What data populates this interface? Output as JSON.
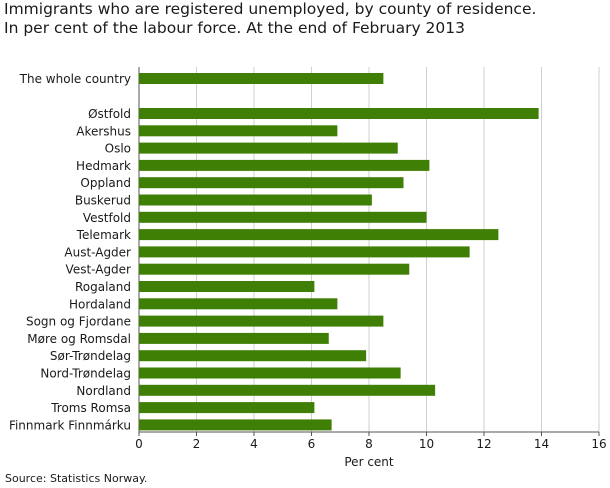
{
  "chart_data": {
    "type": "bar",
    "orientation": "horizontal",
    "title": "Immigrants who are registered unemployed, by county of residence.",
    "subtitle": "In per cent of the labour force. At the end of February 2013",
    "xlabel": "Per cent",
    "ylabel": "",
    "xlim": [
      0,
      16
    ],
    "xticks": [
      "0",
      "2",
      "4",
      "6",
      "8",
      "10",
      "12",
      "14",
      "16"
    ],
    "grid": true,
    "legend": "none",
    "bar_color": "#3f7f05",
    "categories": [
      "The whole country",
      "Østfold",
      "Akershus",
      "Oslo",
      "Hedmark",
      "Oppland",
      "Buskerud",
      "Vestfold",
      "Telemark",
      "Aust-Agder",
      "Vest-Agder",
      "Rogaland",
      "Hordaland",
      "Sogn og Fjordane",
      "Møre og Romsdal",
      "Sør-Trøndelag",
      "Nord-Trøndelag",
      "Nordland",
      "Troms Romsa",
      "Finnmark Finnmárku"
    ],
    "values": [
      8.5,
      13.9,
      6.9,
      9.0,
      10.1,
      9.2,
      8.1,
      10.0,
      12.5,
      11.5,
      9.4,
      6.1,
      6.9,
      8.5,
      6.6,
      7.9,
      9.1,
      10.3,
      6.1,
      6.7
    ]
  },
  "source": "Source: Statistics Norway."
}
